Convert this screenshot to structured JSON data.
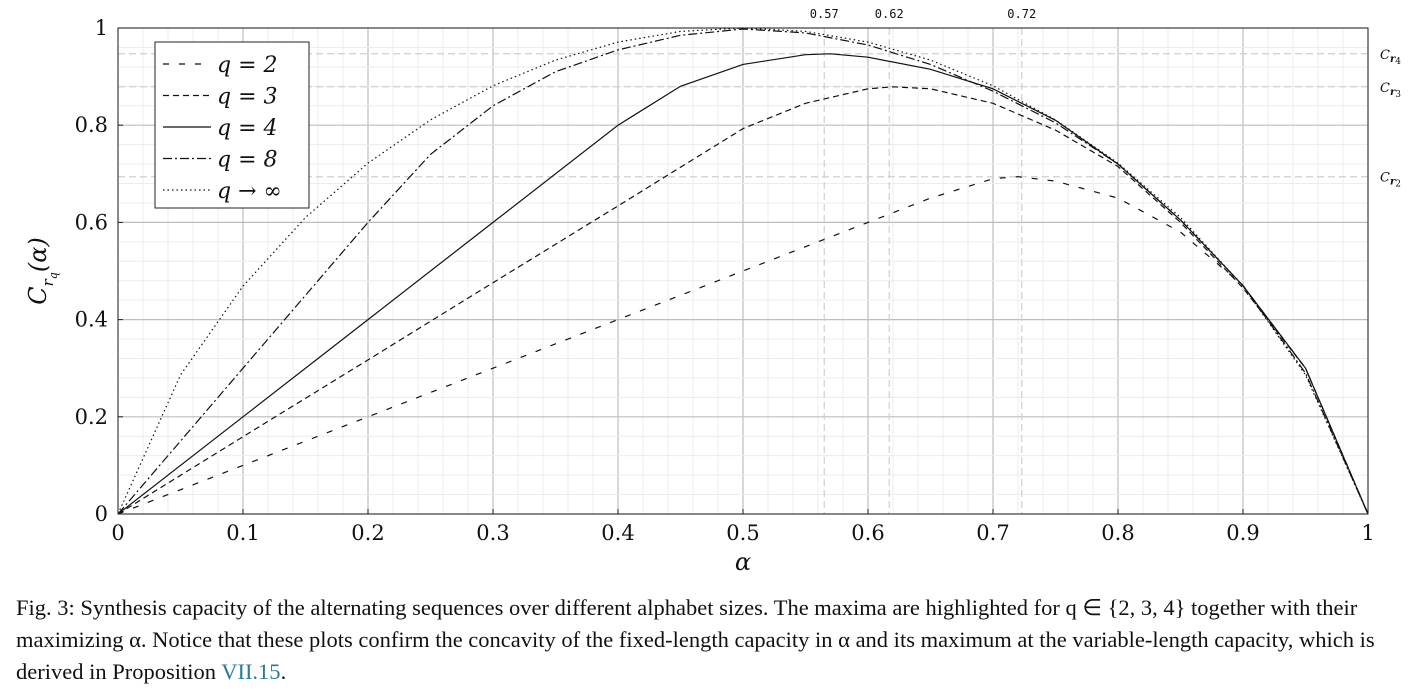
{
  "chart_data": {
    "type": "line",
    "xlabel": "α",
    "ylabel": "C_{r_q}(α)",
    "xlim": [
      0,
      1
    ],
    "ylim": [
      0,
      1
    ],
    "x_ticks": [
      "0",
      "0.1",
      "0.2",
      "0.3",
      "0.4",
      "0.5",
      "0.6",
      "0.7",
      "0.8",
      "0.9",
      "1"
    ],
    "y_ticks": [
      "0",
      "0.2",
      "0.4",
      "0.6",
      "0.8",
      "1"
    ],
    "grid": "major and minor",
    "legend_position": "top-left",
    "maximizer_ticks": [
      {
        "label": "0.57",
        "x": 0.565
      },
      {
        "label": "0.62",
        "x": 0.617
      },
      {
        "label": "0.72",
        "x": 0.723
      }
    ],
    "max_level_ticks": [
      {
        "label": "C",
        "sub": "r",
        "subsub": "4",
        "y": 0.947
      },
      {
        "label": "C",
        "sub": "r",
        "subsub": "3",
        "y": 0.879
      },
      {
        "label": "C",
        "sub": "r",
        "subsub": "2",
        "y": 0.694
      }
    ],
    "series": [
      {
        "name": "q = 2",
        "style": "loosely-dashed",
        "x": [
          0,
          0.1,
          0.2,
          0.3,
          0.4,
          0.5,
          0.6,
          0.65,
          0.7,
          0.72,
          0.75,
          0.8,
          0.85,
          0.9,
          0.95,
          1
        ],
        "y": [
          0,
          0.1,
          0.2,
          0.3,
          0.4,
          0.5,
          0.6,
          0.65,
          0.69,
          0.694,
          0.685,
          0.65,
          0.58,
          0.47,
          0.3,
          0
        ]
      },
      {
        "name": "q = 3",
        "style": "dashed",
        "x": [
          0,
          0.1,
          0.2,
          0.3,
          0.4,
          0.5,
          0.55,
          0.6,
          0.62,
          0.65,
          0.7,
          0.75,
          0.8,
          0.85,
          0.9,
          0.95,
          1
        ],
        "y": [
          0,
          0.159,
          0.317,
          0.476,
          0.634,
          0.793,
          0.845,
          0.875,
          0.879,
          0.875,
          0.845,
          0.79,
          0.715,
          0.6,
          0.465,
          0.3,
          0
        ]
      },
      {
        "name": "q = 4",
        "style": "solid",
        "x": [
          0,
          0.1,
          0.2,
          0.3,
          0.4,
          0.45,
          0.5,
          0.55,
          0.57,
          0.6,
          0.65,
          0.7,
          0.75,
          0.8,
          0.85,
          0.9,
          0.95,
          1
        ],
        "y": [
          0,
          0.2,
          0.4,
          0.6,
          0.8,
          0.88,
          0.925,
          0.945,
          0.947,
          0.94,
          0.915,
          0.875,
          0.81,
          0.72,
          0.605,
          0.47,
          0.3,
          0
        ]
      },
      {
        "name": "q = 8",
        "style": "dash-dot",
        "x": [
          0,
          0.1,
          0.2,
          0.25,
          0.3,
          0.35,
          0.4,
          0.45,
          0.5,
          0.55,
          0.6,
          0.65,
          0.7,
          0.75,
          0.8,
          0.85,
          0.9,
          0.95,
          1
        ],
        "y": [
          0,
          0.3,
          0.6,
          0.74,
          0.84,
          0.91,
          0.955,
          0.985,
          0.998,
          0.99,
          0.965,
          0.925,
          0.87,
          0.805,
          0.72,
          0.605,
          0.47,
          0.29,
          0
        ]
      },
      {
        "name": "q → ∞",
        "style": "dotted",
        "x": [
          0,
          0.05,
          0.1,
          0.15,
          0.2,
          0.25,
          0.3,
          0.35,
          0.4,
          0.45,
          0.5,
          0.55,
          0.6,
          0.65,
          0.7,
          0.75,
          0.8,
          0.85,
          0.9,
          0.95,
          1
        ],
        "y": [
          0,
          0.286,
          0.469,
          0.61,
          0.722,
          0.811,
          0.881,
          0.934,
          0.971,
          0.993,
          1.0,
          0.993,
          0.971,
          0.934,
          0.881,
          0.811,
          0.722,
          0.61,
          0.469,
          0.286,
          0
        ]
      }
    ]
  },
  "caption": {
    "text": "Fig. 3: Synthesis capacity of the alternating sequences over different alphabet sizes. The maxima are highlighted for q ∈ {2, 3, 4} together with their maximizing α. Notice that these plots confirm the concavity of the fixed-length capacity in α and its maximum at the variable-length capacity, which is derived in Proposition ",
    "ref": "VII.15",
    "end": "."
  }
}
